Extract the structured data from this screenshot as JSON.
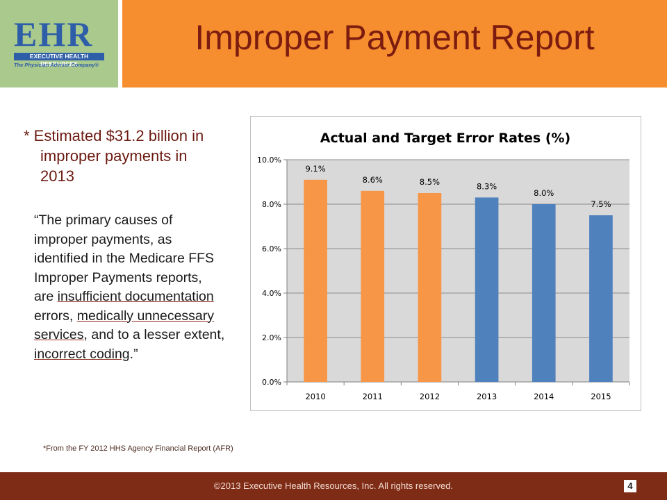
{
  "logo": {
    "letters": "EHR",
    "band_text": "EXECUTIVE HEALTH RESOURCES",
    "tagline": "The Physician Advisor Company®"
  },
  "header": {
    "title": "Improper Payment Report"
  },
  "note": {
    "line1": "* Estimated $31.2 billion in",
    "line2": "improper payments in",
    "line3": "2013"
  },
  "quote": {
    "p1": "“The primary causes of improper payments, as identified in the Medicare FFS Improper Payments reports, are ",
    "u1": "insufficient documentation",
    "p2": " errors, ",
    "u2": "medically unnecessary services",
    "p3": ", and to a lesser extent, ",
    "u3": "incorrect coding",
    "p4": ".”"
  },
  "footnote": "*From the  FY 2012  HHS Agency Financial Report (AFR)",
  "footer": {
    "copyright": "©2013 Executive Health Resources, Inc. All rights reserved.",
    "page_number": "4"
  },
  "colors": {
    "actual": "#f79646",
    "target": "#4f81bd",
    "header": "#f68d2e",
    "title_text": "#7c1c10",
    "footer": "#7e2c16",
    "plot_bg": "#d9d9d9"
  },
  "chart_data": {
    "type": "bar",
    "title": "Actual and Target Error Rates (%)",
    "categories": [
      "2010",
      "2011",
      "2012",
      "2013",
      "2014",
      "2015"
    ],
    "values": [
      9.1,
      8.6,
      8.5,
      8.3,
      8.0,
      7.5
    ],
    "data_labels": [
      "9.1%",
      "8.6%",
      "8.5%",
      "8.3%",
      "8.0%",
      "7.5%"
    ],
    "bar_colors": [
      "#f79646",
      "#f79646",
      "#f79646",
      "#4f81bd",
      "#4f81bd",
      "#4f81bd"
    ],
    "ylim": [
      0,
      10
    ],
    "yticks": [
      0,
      2,
      4,
      6,
      8,
      10
    ],
    "ytick_labels": [
      "0.0%",
      "2.0%",
      "4.0%",
      "6.0%",
      "8.0%",
      "10.0%"
    ],
    "xlabel": "",
    "ylabel": "",
    "grid": true,
    "legend": "none"
  }
}
